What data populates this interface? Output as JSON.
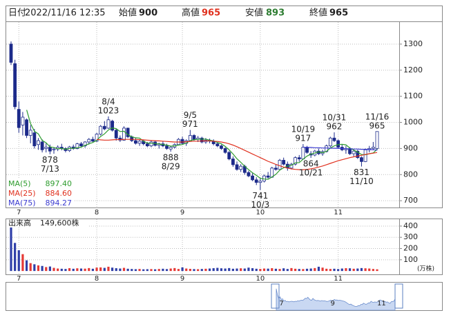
{
  "chart_data": {
    "type": "candlestick",
    "header": {
      "date_label": "日付",
      "datetime": "2022/11/16 12:35",
      "open_label": "始値",
      "high_label": "高値",
      "low_label": "安値",
      "close_label": "終値"
    },
    "categories": [
      null,
      null,
      "7",
      null,
      null,
      null,
      null,
      null,
      null,
      null,
      null,
      null,
      null,
      null,
      null,
      null,
      null,
      null,
      null,
      null,
      null,
      null,
      "8",
      null,
      null,
      null,
      null,
      null,
      null,
      null,
      null,
      null,
      null,
      null,
      null,
      null,
      null,
      null,
      null,
      null,
      null,
      null,
      null,
      null,
      "9",
      null,
      null,
      null,
      null,
      null,
      null,
      null,
      null,
      null,
      null,
      null,
      null,
      null,
      null,
      null,
      null,
      null,
      null,
      null,
      "10",
      null,
      null,
      null,
      null,
      null,
      null,
      null,
      null,
      null,
      null,
      null,
      null,
      null,
      null,
      null,
      null,
      null,
      null,
      null,
      "11",
      null,
      null,
      null,
      null,
      null,
      null,
      null,
      null,
      null,
      null
    ],
    "open": [
      1300,
      1225,
      1050,
      990,
      1010,
      950,
      960,
      915,
      925,
      900,
      905,
      895,
      898,
      905,
      900,
      892,
      906,
      900,
      918,
      910,
      925,
      935,
      928,
      955,
      985,
      978,
      1005,
      970,
      940,
      932,
      978,
      945,
      930,
      920,
      928,
      918,
      910,
      925,
      912,
      918,
      910,
      898,
      905,
      915,
      935,
      920,
      930,
      950,
      935,
      940,
      925,
      932,
      928,
      918,
      910,
      900,
      885,
      860,
      838,
      820,
      832,
      808,
      795,
      780,
      770,
      775,
      795,
      790,
      825,
      820,
      855,
      840,
      825,
      840,
      865,
      860,
      905,
      880,
      875,
      890,
      880,
      888,
      910,
      940,
      930,
      905,
      895,
      900,
      880,
      890,
      865,
      850,
      895,
      900,
      900
    ],
    "high": [
      1310,
      1240,
      1080,
      1040,
      1015,
      990,
      975,
      940,
      935,
      920,
      915,
      905,
      912,
      918,
      905,
      910,
      915,
      922,
      925,
      928,
      940,
      945,
      960,
      990,
      1005,
      1023,
      1010,
      975,
      950,
      985,
      980,
      950,
      940,
      935,
      932,
      925,
      930,
      930,
      922,
      928,
      918,
      910,
      920,
      940,
      945,
      935,
      971,
      955,
      948,
      945,
      940,
      938,
      935,
      925,
      915,
      905,
      890,
      870,
      850,
      840,
      838,
      815,
      805,
      790,
      785,
      800,
      810,
      830,
      840,
      860,
      865,
      850,
      845,
      870,
      875,
      917,
      910,
      890,
      895,
      900,
      895,
      915,
      945,
      962,
      935,
      915,
      910,
      905,
      895,
      895,
      870,
      900,
      910,
      925,
      965
    ],
    "low": [
      1220,
      1050,
      960,
      950,
      940,
      920,
      900,
      895,
      885,
      885,
      878,
      880,
      890,
      893,
      885,
      887,
      895,
      897,
      905,
      903,
      915,
      925,
      925,
      950,
      970,
      975,
      965,
      930,
      925,
      930,
      940,
      925,
      915,
      910,
      912,
      905,
      905,
      908,
      900,
      905,
      895,
      888,
      900,
      912,
      915,
      910,
      928,
      930,
      925,
      920,
      918,
      920,
      912,
      905,
      895,
      880,
      855,
      830,
      815,
      810,
      800,
      790,
      775,
      760,
      741,
      770,
      785,
      788,
      815,
      818,
      835,
      815,
      820,
      835,
      850,
      858,
      880,
      864,
      870,
      875,
      872,
      885,
      905,
      925,
      900,
      890,
      880,
      875,
      870,
      860,
      831,
      848,
      885,
      895,
      893
    ],
    "close": [
      1230,
      1060,
      980,
      1020,
      950,
      970,
      910,
      930,
      895,
      905,
      890,
      898,
      905,
      900,
      892,
      906,
      900,
      918,
      910,
      925,
      935,
      928,
      955,
      985,
      975,
      1010,
      970,
      940,
      932,
      978,
      945,
      930,
      920,
      928,
      918,
      910,
      925,
      912,
      918,
      910,
      900,
      905,
      915,
      935,
      920,
      930,
      950,
      935,
      940,
      925,
      932,
      928,
      918,
      910,
      900,
      885,
      860,
      838,
      820,
      832,
      808,
      795,
      780,
      770,
      775,
      795,
      790,
      825,
      820,
      855,
      840,
      825,
      840,
      865,
      860,
      905,
      885,
      875,
      890,
      880,
      888,
      910,
      940,
      930,
      905,
      895,
      900,
      880,
      890,
      865,
      850,
      895,
      900,
      905,
      965
    ],
    "up_color": "#ffffff",
    "down_color": "#1c2a8a",
    "edge_color": "#1c2a8a",
    "ylim": [
      674,
      1387
    ],
    "yticks": [
      700,
      800,
      900,
      1000,
      1100,
      1200,
      1300
    ],
    "grid": true,
    "series": [
      {
        "name": "MA(5)",
        "color": "#2e9c2e",
        "legend_value": "897.40",
        "values": [
          null,
          null,
          null,
          null,
          1048,
          996,
          966,
          956,
          931,
          922,
          906,
          904,
          899,
          900,
          897,
          900,
          901,
          903,
          905,
          912,
          918,
          923,
          931,
          946,
          956,
          971,
          979,
          976,
          965,
          966,
          953,
          945,
          941,
          940,
          928,
          921,
          920,
          919,
          917,
          915,
          913,
          909,
          910,
          913,
          915,
          921,
          930,
          934,
          935,
          936,
          936,
          932,
          929,
          923,
          918,
          908,
          895,
          879,
          861,
          847,
          832,
          819,
          807,
          797,
          786,
          783,
          782,
          791,
          801,
          817,
          826,
          833,
          836,
          845,
          846,
          859,
          871,
          878,
          883,
          887,
          884,
          889,
          902,
          910,
          915,
          916,
          914,
          902,
          894,
          886,
          877,
          876,
          880,
          883,
          897.4
        ]
      },
      {
        "name": "MA(25)",
        "color": "#e0301e",
        "legend_value": "884.60",
        "values": [
          null,
          null,
          null,
          null,
          null,
          null,
          null,
          null,
          null,
          null,
          null,
          null,
          null,
          null,
          null,
          null,
          null,
          null,
          null,
          null,
          null,
          null,
          935,
          933,
          932,
          932,
          933,
          934,
          934,
          935,
          935,
          935,
          935,
          934,
          933,
          932,
          931,
          930,
          929,
          928,
          927,
          926,
          925,
          925,
          925,
          926,
          927,
          928,
          928,
          929,
          929,
          929,
          928,
          927,
          925,
          922,
          918,
          913,
          907,
          900,
          893,
          886,
          879,
          872,
          865,
          858,
          851,
          845,
          839,
          834,
          829,
          825,
          822,
          820,
          819,
          819,
          820,
          822,
          825,
          829,
          833,
          838,
          843,
          848,
          853,
          857,
          861,
          865,
          868,
          871,
          874,
          877,
          880,
          882,
          884.6
        ]
      },
      {
        "name": "MA(75)",
        "color": "#3a3ad0",
        "legend_value": "894.27",
        "values": [
          null,
          null,
          null,
          null,
          null,
          null,
          null,
          null,
          null,
          null,
          null,
          null,
          null,
          null,
          null,
          null,
          null,
          null,
          null,
          null,
          null,
          null,
          null,
          null,
          null,
          null,
          null,
          null,
          null,
          null,
          null,
          null,
          null,
          null,
          null,
          null,
          null,
          null,
          null,
          null,
          null,
          null,
          null,
          null,
          null,
          null,
          null,
          null,
          null,
          null,
          null,
          null,
          null,
          null,
          null,
          null,
          null,
          null,
          null,
          null,
          null,
          null,
          null,
          null,
          null,
          null,
          null,
          null,
          null,
          null,
          null,
          null,
          null,
          null,
          null,
          905,
          904,
          904,
          903,
          903,
          902,
          902,
          901,
          901,
          900,
          900,
          899,
          899,
          898,
          898,
          897,
          897,
          896,
          895,
          894.27
        ]
      }
    ],
    "annotations": [
      {
        "date": "7/13",
        "value": 878
      },
      {
        "date": "8/4",
        "value": 1023
      },
      {
        "date": "8/29",
        "value": 888
      },
      {
        "date": "9/5",
        "value": 971
      },
      {
        "date": "10/3",
        "value": 741
      },
      {
        "date": "10/19",
        "value": 917
      },
      {
        "date": "10/21",
        "value": 864
      },
      {
        "date": "10/31",
        "value": 962
      },
      {
        "date": "11/10",
        "value": 831
      },
      {
        "date": "11/16",
        "value": 965
      }
    ],
    "volume": {
      "title": "出来高",
      "last_label": "149,600株",
      "unit": "(万株)",
      "up_color": "#e53935",
      "down_color": "#2f3fa8",
      "ylim": [
        -30,
        461
      ],
      "yticks": [
        100,
        200,
        300,
        400
      ],
      "values": [
        395,
        250,
        185,
        150,
        95,
        70,
        60,
        50,
        45,
        35,
        40,
        28,
        22,
        20,
        18,
        25,
        20,
        24,
        22,
        21,
        26,
        20,
        30,
        32,
        28,
        38,
        30,
        25,
        22,
        28,
        20,
        18,
        16,
        18,
        15,
        16,
        17,
        15,
        18,
        20,
        17,
        22,
        26,
        18,
        32,
        22,
        19,
        17,
        16,
        18,
        20,
        22,
        25,
        28,
        24,
        22,
        26,
        20,
        22,
        24,
        22,
        30,
        25,
        20,
        18,
        22,
        21,
        25,
        20,
        18,
        24,
        18,
        26,
        20,
        18,
        17,
        20,
        22,
        26,
        38,
        30,
        20,
        18,
        20,
        17,
        22,
        25,
        24,
        20,
        22,
        26,
        24,
        22,
        18,
        14.96
      ]
    }
  }
}
